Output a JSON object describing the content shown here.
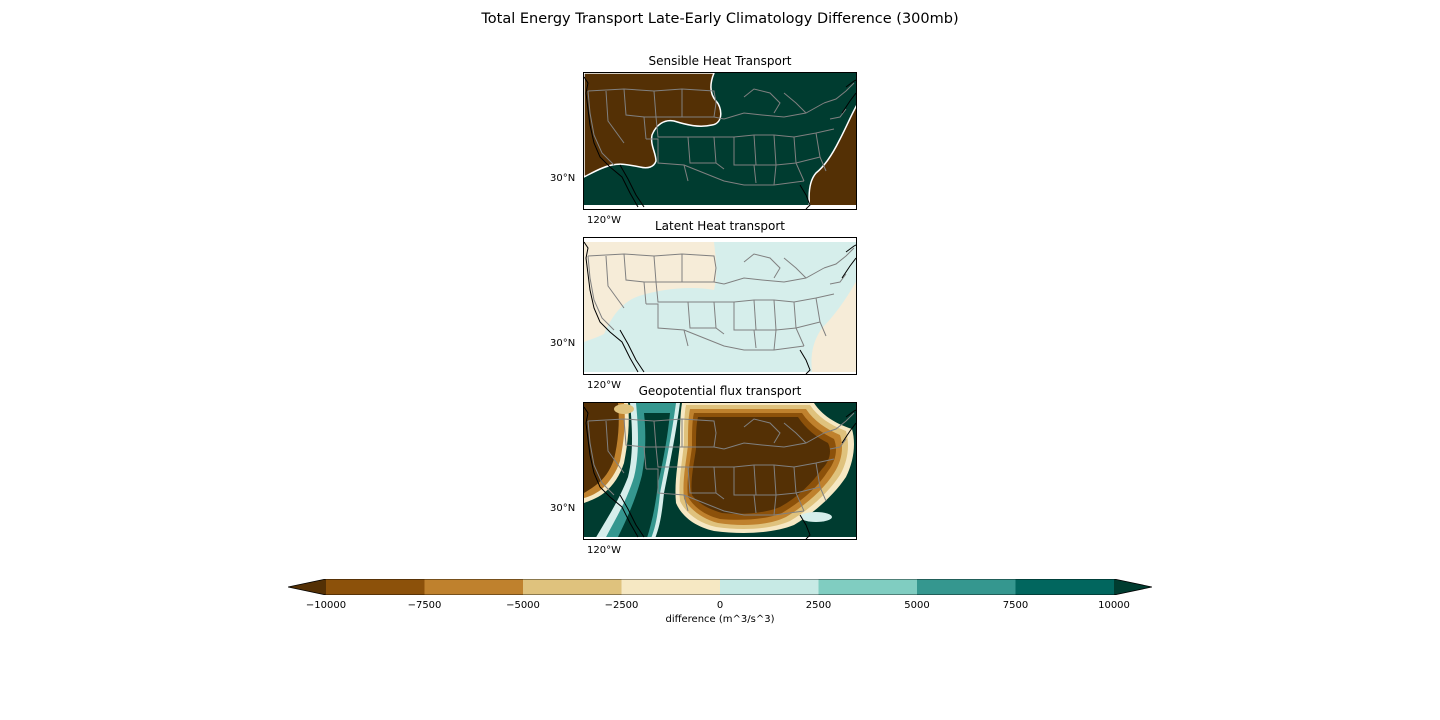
{
  "figure": {
    "title": "Total Energy Transport Late-Early Climatology Difference (300mb)"
  },
  "panels": [
    {
      "title": "Sensible Heat Transport",
      "lat_tick": "30°N",
      "lon_tick": "120°W"
    },
    {
      "title": "Latent Heat transport",
      "lat_tick": "30°N",
      "lon_tick": "120°W"
    },
    {
      "title": "Geopotential flux transport",
      "lat_tick": "30°N",
      "lon_tick": "120°W"
    }
  ],
  "colorbar": {
    "label": "difference (m^3/s^3)",
    "ticks": [
      "−10000",
      "−7500",
      "−5000",
      "−2500",
      "0",
      "2500",
      "5000",
      "7500",
      "10000"
    ],
    "colors": [
      "#543005",
      "#8c510a",
      "#bf812d",
      "#dfc27d",
      "#f6e8c3",
      "#c7eae5",
      "#80cdc1",
      "#35978f",
      "#01665e",
      "#003c30"
    ],
    "extend": "both"
  },
  "colors": {
    "strong_negative": "#543005",
    "weak_negative": "#f6ecd8",
    "weak_positive": "#d6eeeb",
    "strong_positive": "#003c30",
    "state_borders": "#808080",
    "coastline": "#000000"
  }
}
